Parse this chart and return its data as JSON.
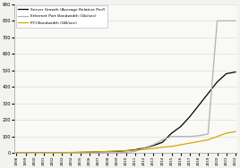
{
  "title": "",
  "years": [
    1998,
    1999,
    2000,
    2001,
    2002,
    2003,
    2004,
    2005,
    2006,
    2007,
    2008,
    2009,
    2010,
    2011,
    2012,
    2013,
    2014,
    2015,
    2016,
    2017,
    2018,
    2019,
    2020,
    2021,
    2022
  ],
  "server_growth": [
    1,
    1,
    2,
    2,
    2,
    2,
    3,
    4,
    5,
    7,
    9,
    10,
    14,
    20,
    30,
    45,
    65,
    120,
    160,
    220,
    290,
    360,
    430,
    480,
    490
  ],
  "ethernet_bw": [
    1,
    1,
    1,
    1,
    1,
    1,
    1,
    1,
    1,
    1,
    1,
    2,
    5,
    10,
    30,
    50,
    80,
    100,
    100,
    100,
    105,
    115,
    800,
    800,
    800
  ],
  "pci_bw": [
    1,
    2,
    2,
    2,
    3,
    3,
    4,
    5,
    6,
    8,
    10,
    12,
    15,
    18,
    22,
    28,
    35,
    40,
    50,
    60,
    70,
    80,
    100,
    120,
    130
  ],
  "server_color": "#000000",
  "ethernet_color": "#b0b0b0",
  "pci_color": "#d4a800",
  "ylim": [
    0,
    900
  ],
  "yticks": [
    0,
    100,
    200,
    300,
    400,
    500,
    600,
    700,
    800,
    900
  ],
  "legend_labels": [
    "Server Growth (Average Relative Perf)",
    "Ethernet Port Bandwidth (Gb/sec)",
    "PCI Bandwidth (GB/sec)"
  ],
  "bg_color": "#f2f2ee",
  "plot_bg": "#f9f9f7"
}
